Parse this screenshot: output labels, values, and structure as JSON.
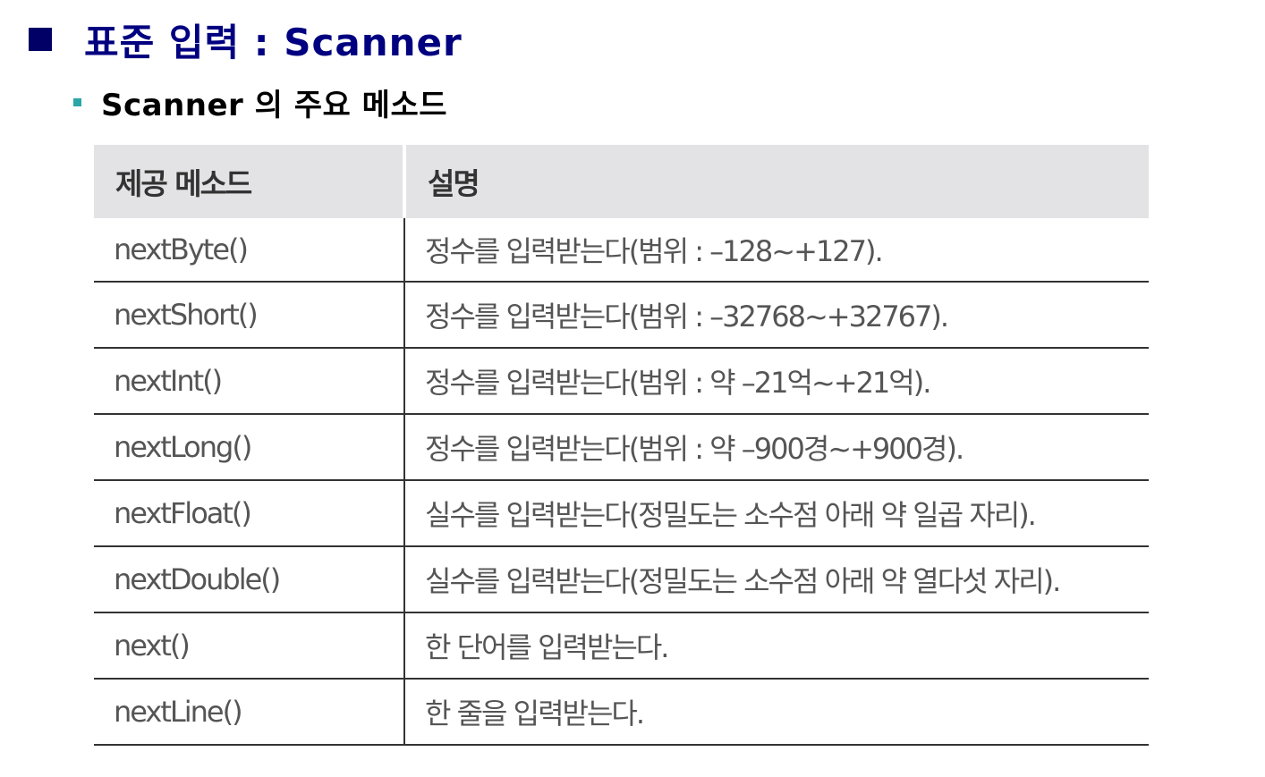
{
  "title": "표준 입력 : Scanner",
  "subtitle": "Scanner 의 주요 메소드",
  "colors": {
    "title": "#000080",
    "title_bullet": "#000066",
    "subtitle_bullet": "#2ba6a8",
    "header_background": "#e3e3e5",
    "cell_text": "#555555"
  },
  "table": {
    "headers": {
      "method": "제공 메소드",
      "description": "설명"
    },
    "rows": [
      {
        "method": "nextByte()",
        "description": "정수를 입력받는다(범위 : –128~+127)."
      },
      {
        "method": "nextShort()",
        "description": "정수를 입력받는다(범위 : –32768~+32767)."
      },
      {
        "method": "nextInt()",
        "description": "정수를 입력받는다(범위 : 약 –21억~+21억)."
      },
      {
        "method": "nextLong()",
        "description": "정수를 입력받는다(범위 : 약 –900경~+900경)."
      },
      {
        "method": "nextFloat()",
        "description": "실수를 입력받는다(정밀도는 소수점 아래 약 일곱 자리)."
      },
      {
        "method": "nextDouble()",
        "description": "실수를 입력받는다(정밀도는 소수점 아래 약 열다섯 자리)."
      },
      {
        "method": "next()",
        "description": "한 단어를 입력받는다."
      },
      {
        "method": "nextLine()",
        "description": "한 줄을 입력받는다."
      }
    ]
  }
}
